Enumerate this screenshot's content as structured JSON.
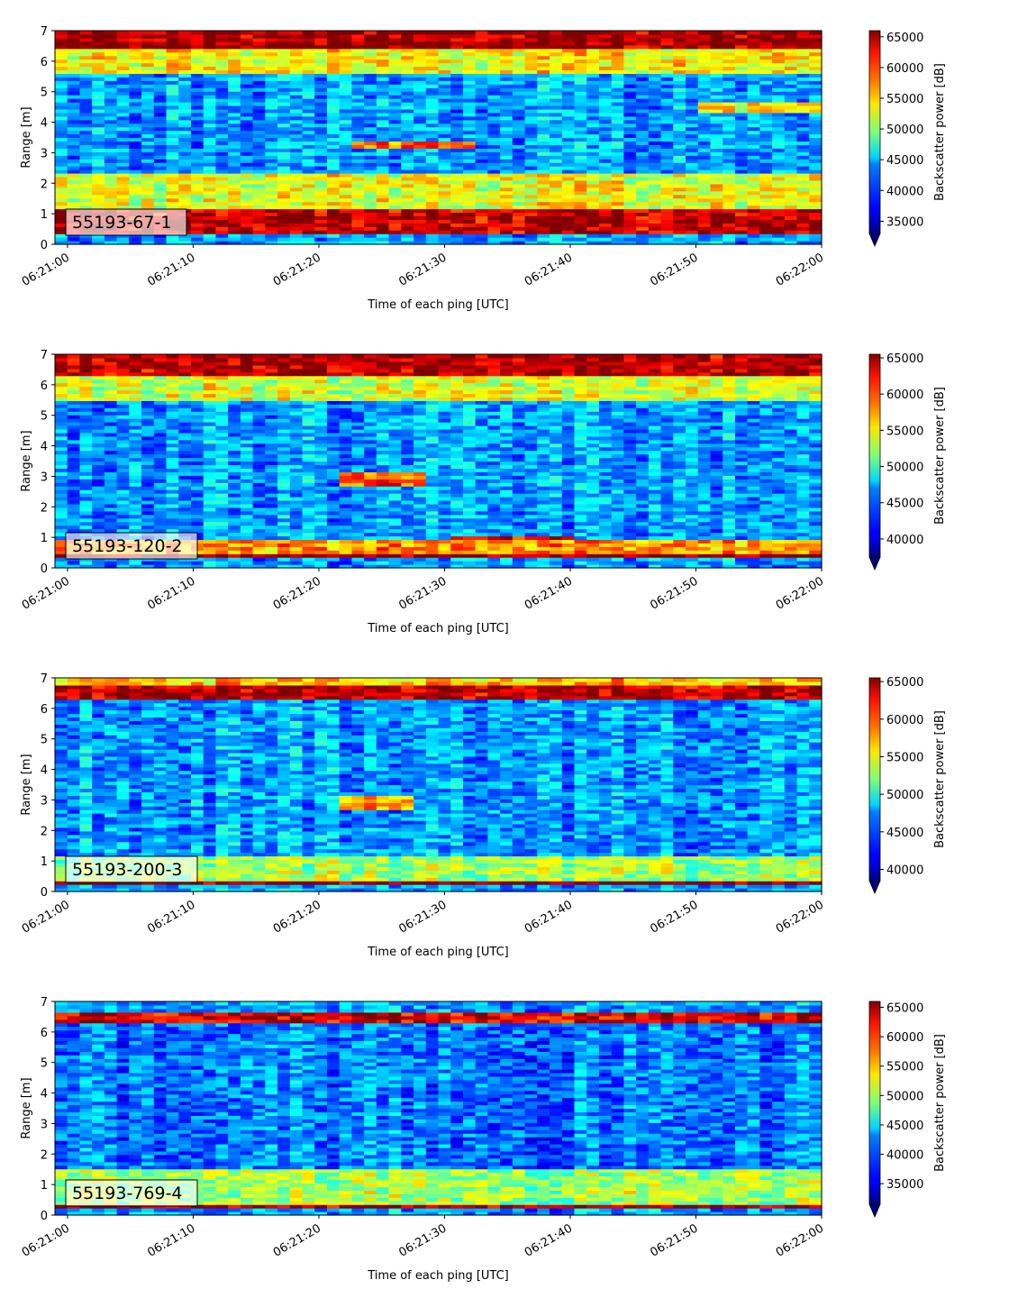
{
  "figure": {
    "x_label": "Time of each ping [UTC]",
    "y_label": "Range [m]",
    "colorbar_label": "Backscatter power [dB]",
    "colormap": "jet"
  },
  "chart_data": [
    {
      "type": "heatmap",
      "panel_label": "55193-67-1",
      "xlabel": "Time of each ping [UTC]",
      "ylabel": "Range [m]",
      "x_ticks": [
        "06:21:00",
        "06:21:10",
        "06:21:20",
        "06:21:30",
        "06:21:40",
        "06:21:50",
        "06:22:00"
      ],
      "x_range": [
        "06:20:59",
        "06:22:00"
      ],
      "y_ticks": [
        0,
        1,
        2,
        3,
        4,
        5,
        6,
        7
      ],
      "ylim": [
        0,
        7
      ],
      "colorbar": {
        "label": "Backscatter power [dB]",
        "ticks": [
          35000,
          40000,
          45000,
          50000,
          55000,
          60000,
          65000
        ],
        "range": [
          33000,
          66000
        ],
        "extend": "min"
      },
      "features": [
        {
          "range_m": [
            6.4,
            7.0
          ],
          "level": 65000
        },
        {
          "range_m": [
            5.6,
            6.4
          ],
          "level": 54000
        },
        {
          "range_m": [
            0.3,
            1.2
          ],
          "level": 64000
        },
        {
          "range_m": [
            1.2,
            2.3
          ],
          "level": 53000
        },
        {
          "range_m": [
            3.2,
            3.4
          ],
          "level": 58000,
          "note": "target trace 06:21:23-06:21:32"
        },
        {
          "range_m": [
            4.3,
            4.7
          ],
          "level": 54000,
          "note": "band 06:21:50-06:22:00"
        }
      ]
    },
    {
      "type": "heatmap",
      "panel_label": "55193-120-2",
      "xlabel": "Time of each ping [UTC]",
      "ylabel": "Range [m]",
      "x_ticks": [
        "06:21:00",
        "06:21:10",
        "06:21:20",
        "06:21:30",
        "06:21:40",
        "06:21:50",
        "06:22:00"
      ],
      "x_range": [
        "06:20:59",
        "06:22:00"
      ],
      "y_ticks": [
        0,
        1,
        2,
        3,
        4,
        5,
        6,
        7
      ],
      "ylim": [
        0,
        7
      ],
      "colorbar": {
        "label": "Backscatter power [dB]",
        "ticks": [
          40000,
          45000,
          50000,
          55000,
          60000,
          65000
        ],
        "range": [
          37500,
          65500
        ],
        "extend": "min"
      },
      "features": [
        {
          "range_m": [
            6.3,
            7.0
          ],
          "level": 64000
        },
        {
          "range_m": [
            5.5,
            6.3
          ],
          "level": 54000
        },
        {
          "range_m": [
            0.3,
            0.5
          ],
          "level": 65000
        },
        {
          "range_m": [
            0.5,
            0.9
          ],
          "level": 58000
        },
        {
          "range_m": [
            2.7,
            3.1
          ],
          "level": 60000,
          "note": "target trace 06:21:22-06:21:29"
        },
        {
          "range_m": [
            0.9,
            1.1
          ],
          "level": 62000,
          "note": "trace 06:21:30-06:21:40"
        }
      ]
    },
    {
      "type": "heatmap",
      "panel_label": "55193-200-3",
      "xlabel": "Time of each ping [UTC]",
      "ylabel": "Range [m]",
      "x_ticks": [
        "06:21:00",
        "06:21:10",
        "06:21:20",
        "06:21:30",
        "06:21:40",
        "06:21:50",
        "06:22:00"
      ],
      "x_range": [
        "06:20:59",
        "06:22:00"
      ],
      "y_ticks": [
        0,
        1,
        2,
        3,
        4,
        5,
        6,
        7
      ],
      "ylim": [
        0,
        7
      ],
      "colorbar": {
        "label": "Backscatter power [dB]",
        "ticks": [
          40000,
          45000,
          50000,
          55000,
          60000,
          65000
        ],
        "range": [
          38500,
          65500
        ],
        "extend": "min"
      },
      "features": [
        {
          "range_m": [
            6.3,
            6.8
          ],
          "level": 64000
        },
        {
          "range_m": [
            6.8,
            7.0
          ],
          "level": 57000
        },
        {
          "range_m": [
            0.2,
            0.4
          ],
          "level": 65000
        },
        {
          "range_m": [
            0.4,
            1.2
          ],
          "level": 53000
        },
        {
          "range_m": [
            2.7,
            3.1
          ],
          "level": 58000,
          "note": "target trace 06:21:22-06:21:28"
        }
      ]
    },
    {
      "type": "heatmap",
      "panel_label": "55193-769-4",
      "xlabel": "Time of each ping [UTC]",
      "ylabel": "Range [m]",
      "x_ticks": [
        "06:21:00",
        "06:21:10",
        "06:21:20",
        "06:21:30",
        "06:21:40",
        "06:21:50",
        "06:22:00"
      ],
      "x_range": [
        "06:20:59",
        "06:22:00"
      ],
      "y_ticks": [
        0,
        1,
        2,
        3,
        4,
        5,
        6,
        7
      ],
      "ylim": [
        0,
        7
      ],
      "colorbar": {
        "label": "Backscatter power [dB]",
        "ticks": [
          35000,
          40000,
          45000,
          50000,
          55000,
          60000,
          65000
        ],
        "range": [
          31500,
          66000
        ],
        "extend": "min"
      },
      "features": [
        {
          "range_m": [
            6.3,
            6.6
          ],
          "level": 63000
        },
        {
          "range_m": [
            0.2,
            0.35
          ],
          "level": 65000
        },
        {
          "range_m": [
            0.35,
            1.5
          ],
          "level": 50000
        },
        {
          "range_m": [
            1.5,
            6.3
          ],
          "level": 40000
        }
      ]
    }
  ]
}
